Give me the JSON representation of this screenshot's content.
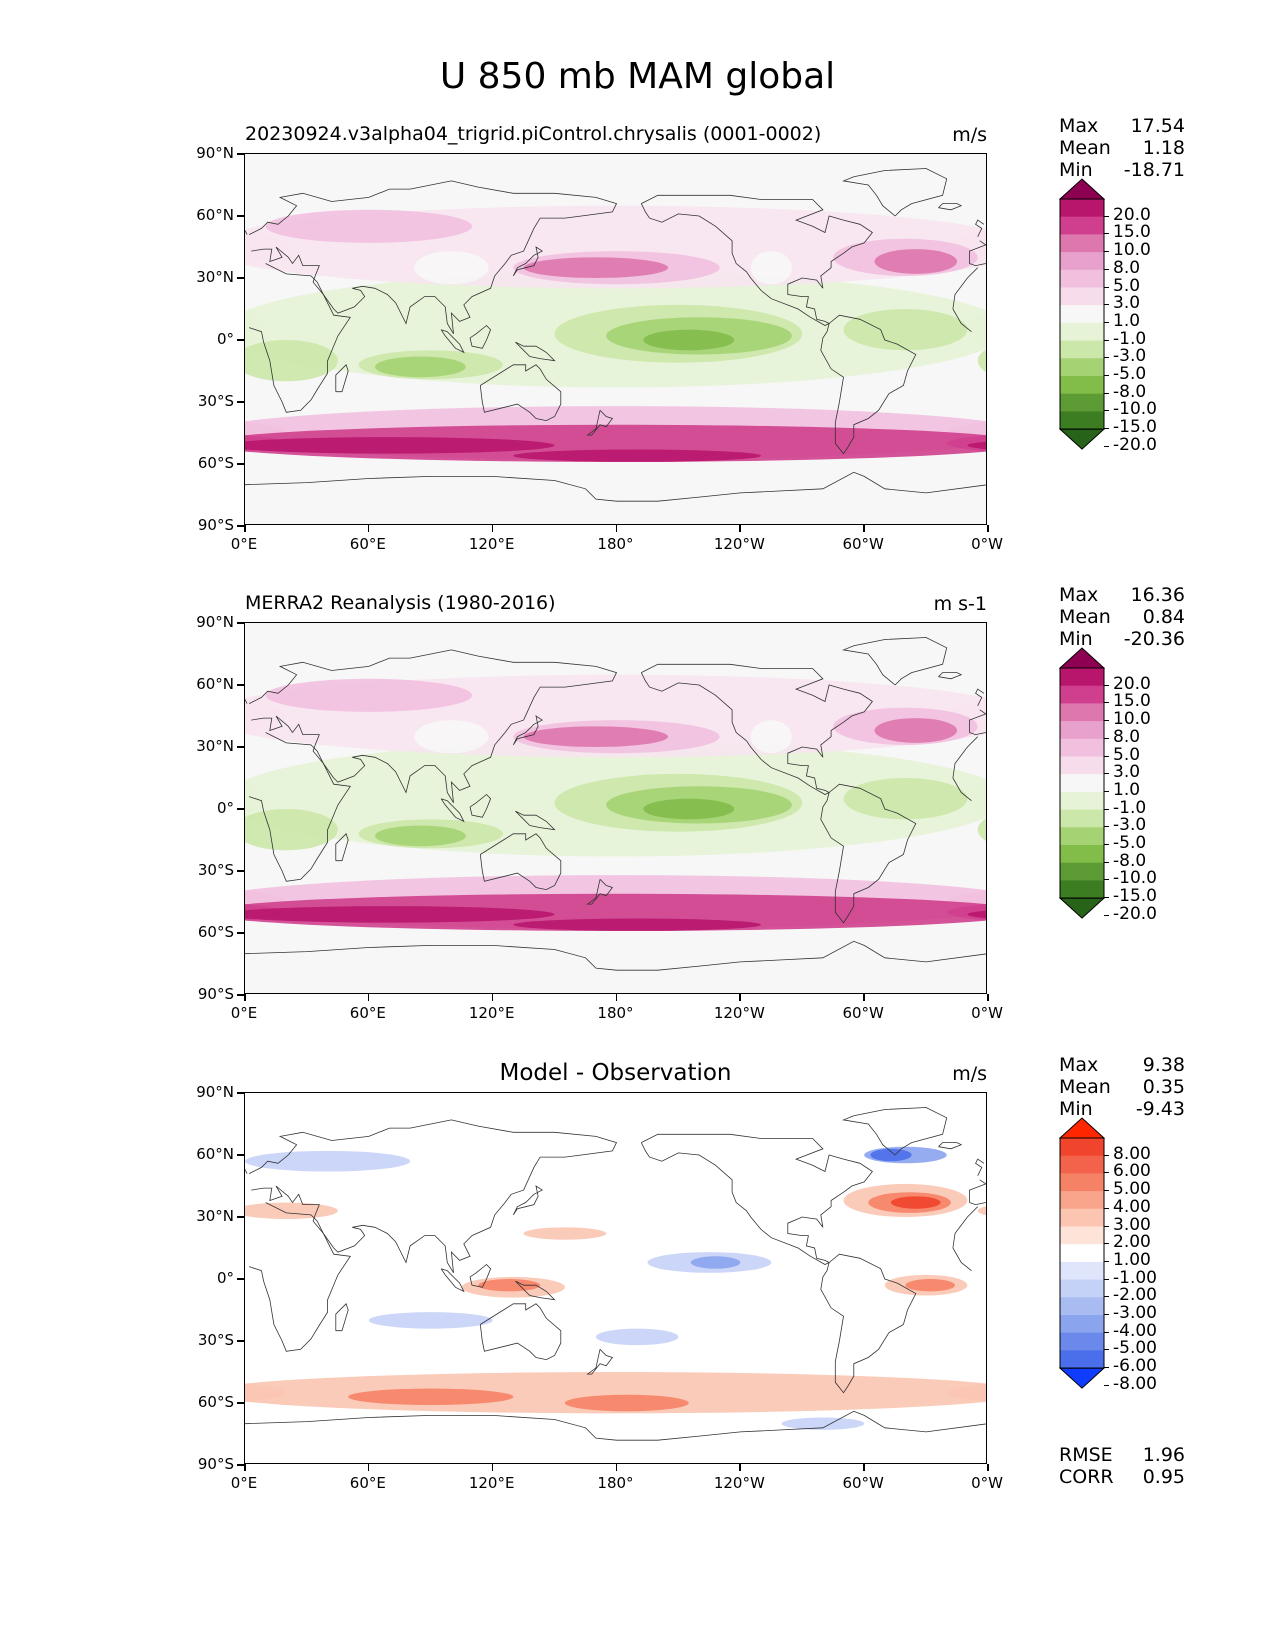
{
  "title": "U 850 mb MAM global",
  "lat_ticks": [
    "90°N",
    "60°N",
    "30°N",
    "0°",
    "30°S",
    "60°S",
    "90°S"
  ],
  "lon_ticks": [
    "0°E",
    "60°E",
    "120°E",
    "180°",
    "120°W",
    "60°W",
    "0°W"
  ],
  "panels": [
    {
      "id": "model",
      "title": "20230924.v3alpha04_trigrid.piControl.chrysalis (0001-0002)",
      "title_centered": false,
      "units": "m/s",
      "stats": {
        "max_label": "Max",
        "max": "17.54",
        "mean_label": "Mean",
        "mean": "1.18",
        "min_label": "Min",
        "min": "-18.71"
      },
      "colorbar": {
        "labels": [
          "20.0",
          "15.0",
          "10.0",
          "8.0",
          "5.0",
          "3.0",
          "1.0",
          "-1.0",
          "-3.0",
          "-5.0",
          "-8.0",
          "-10.0",
          "-15.0",
          "-20.0"
        ],
        "colors": [
          "#8e0152",
          "#b8166d",
          "#cf3f8d",
          "#de77ae",
          "#e8a1cd",
          "#f1c0df",
          "#f7dceb",
          "#f7f7f7",
          "#e6f3d6",
          "#cbe7a9",
          "#a5d373",
          "#82bd4a",
          "#5d9c35",
          "#3d7d22",
          "#276419"
        ]
      }
    },
    {
      "id": "obs",
      "title": "MERRA2 Reanalysis (1980-2016)",
      "title_centered": false,
      "units": "m s-1",
      "stats": {
        "max_label": "Max",
        "max": "16.36",
        "mean_label": "Mean",
        "mean": "0.84",
        "min_label": "Min",
        "min": "-20.36"
      },
      "colorbar": {
        "labels": [
          "20.0",
          "15.0",
          "10.0",
          "8.0",
          "5.0",
          "3.0",
          "1.0",
          "-1.0",
          "-3.0",
          "-5.0",
          "-8.0",
          "-10.0",
          "-15.0",
          "-20.0"
        ],
        "colors": [
          "#8e0152",
          "#b8166d",
          "#cf3f8d",
          "#de77ae",
          "#e8a1cd",
          "#f1c0df",
          "#f7dceb",
          "#f7f7f7",
          "#e6f3d6",
          "#cbe7a9",
          "#a5d373",
          "#82bd4a",
          "#5d9c35",
          "#3d7d22",
          "#276419"
        ]
      }
    },
    {
      "id": "diff",
      "title": "Model - Observation",
      "title_centered": true,
      "units": "m/s",
      "stats": {
        "max_label": "Max",
        "max": "9.38",
        "mean_label": "Mean",
        "mean": "0.35",
        "min_label": "Min",
        "min": "-9.43"
      },
      "colorbar": {
        "labels": [
          "8.00",
          "6.00",
          "5.00",
          "4.00",
          "3.00",
          "2.00",
          "1.00",
          "-1.00",
          "-2.00",
          "-3.00",
          "-4.00",
          "-5.00",
          "-6.00",
          "-8.00"
        ],
        "colors": [
          "#ff2600",
          "#f0442c",
          "#f3624a",
          "#f68266",
          "#f8a58c",
          "#fbc5b2",
          "#fde3d8",
          "#ffffff",
          "#dfe6fb",
          "#c5d2f7",
          "#a8bcf2",
          "#8aa4ee",
          "#6a89ea",
          "#4b6eea",
          "#0f3cff"
        ]
      },
      "extra_stats": {
        "rmse_label": "RMSE",
        "rmse": "1.96",
        "corr_label": "CORR",
        "corr": "0.95"
      }
    }
  ],
  "map_palettes": {
    "wind": {
      "pink_dark": "#b8166d",
      "pink": "#cf3f8d",
      "pink_mid": "#de77ae",
      "pink_light": "#f1c0df",
      "pink_faint": "#f7e4ef",
      "white": "#f7f7f7",
      "green_faint": "#e6f3d6",
      "green_light": "#cbe7a9",
      "green": "#a5d373",
      "green_mid": "#82bd4a",
      "green_dark": "#5d9c35"
    },
    "diff": {
      "red_dark": "#f0442c",
      "red": "#f68266",
      "red_light": "#fbc5b2",
      "white": "#ffffff",
      "blue_light": "#c5d2f7",
      "blue": "#8aa4ee",
      "blue_dark": "#4b6eea"
    },
    "coast": "#333333"
  }
}
